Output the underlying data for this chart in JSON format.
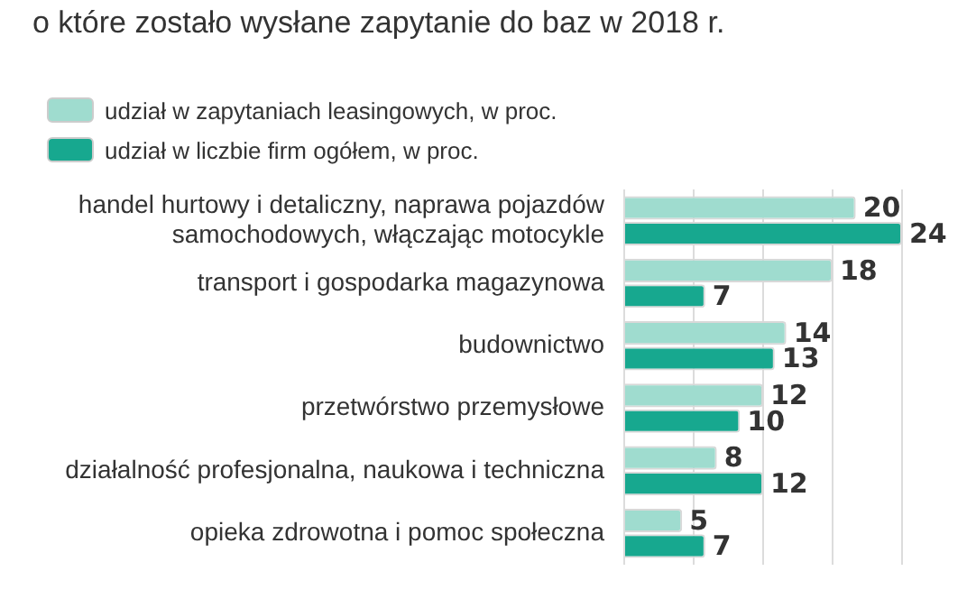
{
  "chart_data": {
    "type": "bar",
    "orientation": "horizontal",
    "title": "o które zostało wysłane zapytanie do baz w 2018 r.",
    "categories": [
      "handel hurtowy i detaliczny, naprawa pojazdów samochodowych, włączając motocykle",
      "transport i gospodarka magazynowa",
      "budownictwo",
      "przetwórstwo przemysłowe",
      "działalność profesjonalna, naukowa i techniczna",
      "opieka zdrowotna i pomoc społeczna"
    ],
    "series": [
      {
        "name": "udział w zapytaniach leasingowych, w proc.",
        "color": "#9fdccf",
        "values": [
          20,
          18,
          14,
          12,
          8,
          5
        ]
      },
      {
        "name": "udział w liczbie firm ogółem, w proc.",
        "color": "#17a88f",
        "values": [
          24,
          7,
          13,
          10,
          12,
          7
        ]
      }
    ],
    "xlim": [
      0,
      24
    ],
    "xticks": [
      {
        "value": 0,
        "label": null
      },
      {
        "value": 6,
        "label": null
      },
      {
        "value": 12,
        "label": null
      },
      {
        "value": 18,
        "label": null
      },
      {
        "value": 24,
        "label": null
      }
    ],
    "tick_labels": "y",
    "grid": "x",
    "legend": "top left",
    "data_labels": true
  }
}
